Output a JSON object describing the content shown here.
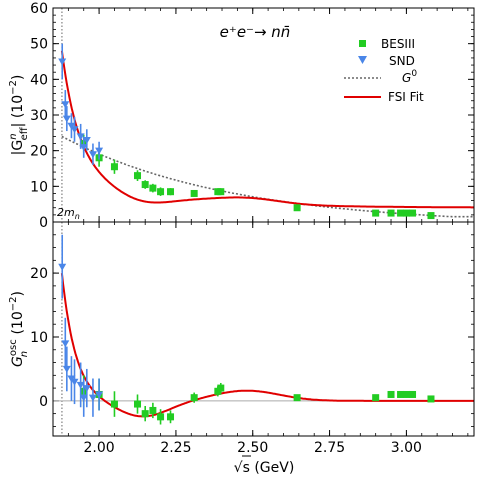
{
  "chart_data": {
    "type": "scatter",
    "title": "e⁺e⁻→ nn̄",
    "xlabel": "√s  (GeV)",
    "x_ticks": [
      2.0,
      2.25,
      2.5,
      2.75,
      3.0
    ],
    "x_tick_labels": [
      "2.00",
      "2.25",
      "2.50",
      "2.75",
      "3.00"
    ],
    "xlim": [
      1.85,
      3.22
    ],
    "threshold_x": 1.8791,
    "threshold_label": "2m",
    "threshold_label_sub": "n",
    "legend_placement": "top-right",
    "colors": {
      "bes": "#22cc22",
      "snd": "#4a86e8",
      "g0": "#666666",
      "fit": "#e00000"
    },
    "panels": [
      {
        "ylabel_main": "|G",
        "ylabel_sup": "n",
        "ylabel_sub": "eff",
        "ylabel_tail": "| (10",
        "ylabel_exp": "−2",
        "ylabel_close": ")",
        "ylim": [
          0,
          60
        ],
        "y_ticks": [
          0,
          10,
          20,
          30,
          40,
          50,
          60
        ],
        "y_tick_labels": [
          "0",
          "10",
          "20",
          "30",
          "40",
          "50",
          "60"
        ],
        "series": [
          {
            "name": "BESIII",
            "kind": "square",
            "points": [
              {
                "x": 1.95,
                "y": 22,
                "e": 2.5
              },
              {
                "x": 2.0,
                "y": 18,
                "e": 2.5
              },
              {
                "x": 2.05,
                "y": 15.5,
                "e": 2.0
              },
              {
                "x": 2.125,
                "y": 13,
                "e": 1.5
              },
              {
                "x": 2.15,
                "y": 10.5,
                "e": 1.2
              },
              {
                "x": 2.175,
                "y": 9.5,
                "e": 1.2
              },
              {
                "x": 2.2,
                "y": 8.5,
                "e": 1.2
              },
              {
                "x": 2.2324,
                "y": 8.5,
                "e": 1.0
              },
              {
                "x": 2.3094,
                "y": 8.0,
                "e": 0.8
              },
              {
                "x": 2.3864,
                "y": 8.5,
                "e": 0.8
              },
              {
                "x": 2.396,
                "y": 8.5,
                "e": 0.8
              },
              {
                "x": 2.6444,
                "y": 4.0,
                "e": 0.5
              },
              {
                "x": 2.9,
                "y": 2.5,
                "e": 0.5
              },
              {
                "x": 2.95,
                "y": 2.5,
                "e": 0.5
              },
              {
                "x": 2.981,
                "y": 2.5,
                "e": 0.5
              },
              {
                "x": 3.0,
                "y": 2.5,
                "e": 0.5
              },
              {
                "x": 3.02,
                "y": 2.5,
                "e": 0.5
              },
              {
                "x": 3.08,
                "y": 1.8,
                "e": 0.4
              }
            ]
          },
          {
            "name": "SND",
            "kind": "triangle",
            "points": [
              {
                "x": 1.88,
                "y": 45,
                "e": 5
              },
              {
                "x": 1.89,
                "y": 33,
                "e": 4
              },
              {
                "x": 1.895,
                "y": 29,
                "e": 3.5
              },
              {
                "x": 1.91,
                "y": 27,
                "e": 3.5
              },
              {
                "x": 1.92,
                "y": 26,
                "e": 3.5
              },
              {
                "x": 1.94,
                "y": 24,
                "e": 3.5
              },
              {
                "x": 1.95,
                "y": 21,
                "e": 3.0
              },
              {
                "x": 1.96,
                "y": 23,
                "e": 3.0
              },
              {
                "x": 1.98,
                "y": 19,
                "e": 3.0
              },
              {
                "x": 2.0,
                "y": 20,
                "e": 2.5
              }
            ]
          }
        ],
        "legend": [
          {
            "label": "BESIII",
            "kind": "square"
          },
          {
            "label": "SND",
            "kind": "triangle"
          },
          {
            "label": "G",
            "label_sup": "0",
            "kind": "dotted"
          },
          {
            "label": "FSI Fit",
            "kind": "solid"
          }
        ]
      },
      {
        "ylabel_main": "G",
        "ylabel_sup": "osc",
        "ylabel_sub": "n",
        "ylabel_tail": " (10",
        "ylabel_exp": "−2",
        "ylabel_close": ")",
        "ylim": [
          -5.5,
          28
        ],
        "y_ticks": [
          0,
          10,
          20
        ],
        "y_tick_labels": [
          "0",
          "10",
          "20"
        ],
        "series": [
          {
            "name": "BESIII",
            "kind": "square",
            "points": [
              {
                "x": 1.95,
                "y": 1.5,
                "e": 2.5
              },
              {
                "x": 2.0,
                "y": 1.0,
                "e": 2.5
              },
              {
                "x": 2.05,
                "y": -0.5,
                "e": 2.0
              },
              {
                "x": 2.125,
                "y": -0.5,
                "e": 1.5
              },
              {
                "x": 2.15,
                "y": -2.0,
                "e": 1.2
              },
              {
                "x": 2.175,
                "y": -1.5,
                "e": 1.2
              },
              {
                "x": 2.2,
                "y": -2.5,
                "e": 1.2
              },
              {
                "x": 2.2324,
                "y": -2.5,
                "e": 1.0
              },
              {
                "x": 2.3094,
                "y": 0.5,
                "e": 0.8
              },
              {
                "x": 2.3864,
                "y": 1.5,
                "e": 0.8
              },
              {
                "x": 2.396,
                "y": 2.0,
                "e": 0.8
              },
              {
                "x": 2.6444,
                "y": 0.5,
                "e": 0.5
              },
              {
                "x": 2.9,
                "y": 0.5,
                "e": 0.5
              },
              {
                "x": 2.95,
                "y": 1.0,
                "e": 0.5
              },
              {
                "x": 2.981,
                "y": 1.0,
                "e": 0.5
              },
              {
                "x": 3.0,
                "y": 1.0,
                "e": 0.5
              },
              {
                "x": 3.02,
                "y": 1.0,
                "e": 0.5
              },
              {
                "x": 3.08,
                "y": 0.3,
                "e": 0.4
              }
            ]
          },
          {
            "name": "SND",
            "kind": "triangle",
            "points": [
              {
                "x": 1.88,
                "y": 21,
                "e": 5
              },
              {
                "x": 1.89,
                "y": 9,
                "e": 4
              },
              {
                "x": 1.895,
                "y": 5,
                "e": 3.5
              },
              {
                "x": 1.91,
                "y": 3.5,
                "e": 3.5
              },
              {
                "x": 1.92,
                "y": 3.0,
                "e": 3.5
              },
              {
                "x": 1.94,
                "y": 2.5,
                "e": 3.5
              },
              {
                "x": 1.95,
                "y": 0.5,
                "e": 3.0
              },
              {
                "x": 1.96,
                "y": 2.0,
                "e": 3.0
              },
              {
                "x": 1.98,
                "y": 0.5,
                "e": 3.0
              },
              {
                "x": 2.0,
                "y": 1.0,
                "e": 2.5
              }
            ]
          }
        ]
      }
    ]
  }
}
